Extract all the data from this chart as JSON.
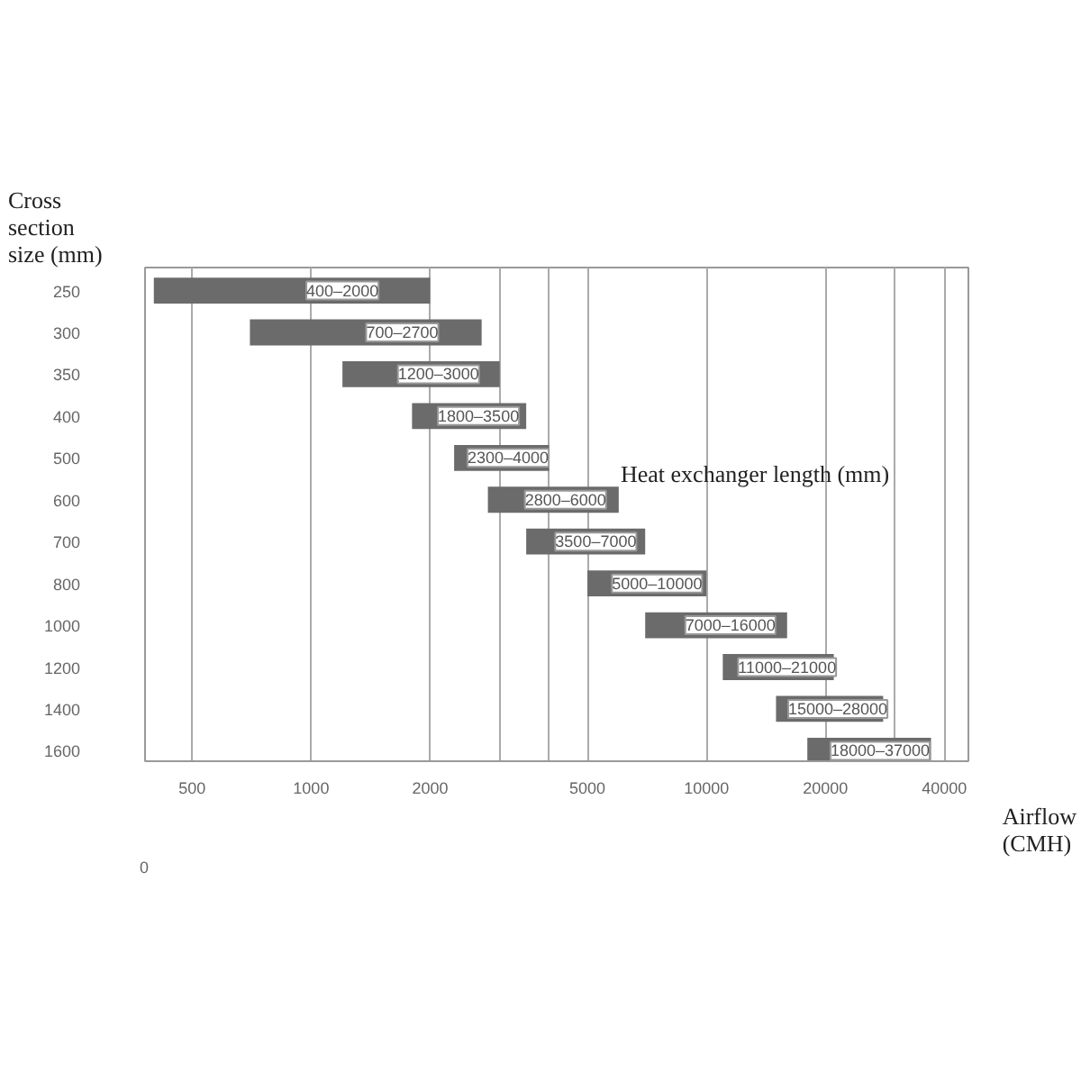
{
  "chart_data": {
    "type": "bar",
    "orientation": "horizontal",
    "ylabel": "Cross section size (mm)",
    "xlabel": "Airflow (CMH)",
    "annotations": [
      "Heat exchanger length (mm)",
      "0"
    ],
    "log": "x",
    "categories": [
      "250",
      "300",
      "350",
      "400",
      "500",
      "600",
      "700",
      "800",
      "1000",
      "1200",
      "1400",
      "1600"
    ],
    "base": [
      400,
      700,
      1200,
      1800,
      2300,
      2800,
      3500,
      5000,
      7000,
      11000,
      15000,
      18000
    ],
    "values": [
      1600,
      2000,
      1800,
      1700,
      1700,
      3200,
      3500,
      5000,
      9000,
      10000,
      13000,
      19000
    ],
    "value_labels": [
      "400–2000",
      "700–2700",
      "1200–3000",
      "1800–3500",
      "2300–4000",
      "2800–6000",
      "3500–7000",
      "5000–10000",
      "7000–16000",
      "11000–21000",
      "15000–28000",
      "18000–37000"
    ],
    "color": "#6b6b6b",
    "xlim": [
      380,
      46000
    ],
    "xticks": [
      500,
      1000,
      2000,
      {
        "value": 3000,
        "label": null
      },
      {
        "value": 4000,
        "label": null
      },
      5000,
      10000,
      20000,
      {
        "value": 30000,
        "label": null
      },
      40000
    ],
    "grid": "x"
  }
}
